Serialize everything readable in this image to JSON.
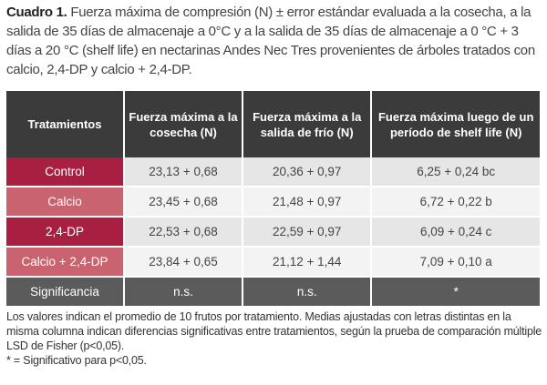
{
  "caption": {
    "label": "Cuadro 1.",
    "text": " Fuerza máxima de compresión (N) ± error estándar evaluada a la cosecha, a la salida de 35 días de almacenaje a 0°C y a la salida de 35 días de almacenaje a 0 °C + 3 días a 20 °C (shelf life) en nectarinas Andes Nec Tres provenientes de árboles tratados con calcio, 2,4-DP y calcio + 2,4-DP."
  },
  "table": {
    "headers": [
      "Tratamientos",
      "Fuerza máxima a la cosecha (N)",
      "Fuerza máxima a la salida de frío (N)",
      "Fuerza máxima luego de un período de shelf life (N)"
    ],
    "rows": [
      [
        "Control",
        "23,13 + 0,68",
        "20,36 + 0,97",
        "6,25 + 0,24 bc"
      ],
      [
        "Calcio",
        "23,45 + 0,68",
        "21,48 + 0,97",
        "6,72 + 0,22 b"
      ],
      [
        "2,4-DP",
        "22,53 + 0,68",
        "22,59 + 0,97",
        "6,09 + 0,24 c"
      ],
      [
        "Calcio + 2,4-DP",
        "23,84 + 0,65",
        "21,12 + 1,44",
        "7,09 + 0,10 a"
      ]
    ],
    "significance": [
      "Significancia",
      "n.s.",
      "n.s.",
      "*"
    ]
  },
  "footnote": {
    "line1": "Los valores indican el promedio de 10 frutos por tratamiento. Medias ajustadas con letras distintas en la misma columna indican diferencias significativas entre tratamientos, según la prueba de comparación múltiple LSD de Fisher (p<0,05).",
    "line2": "* = Significativo para p<0,05."
  }
}
